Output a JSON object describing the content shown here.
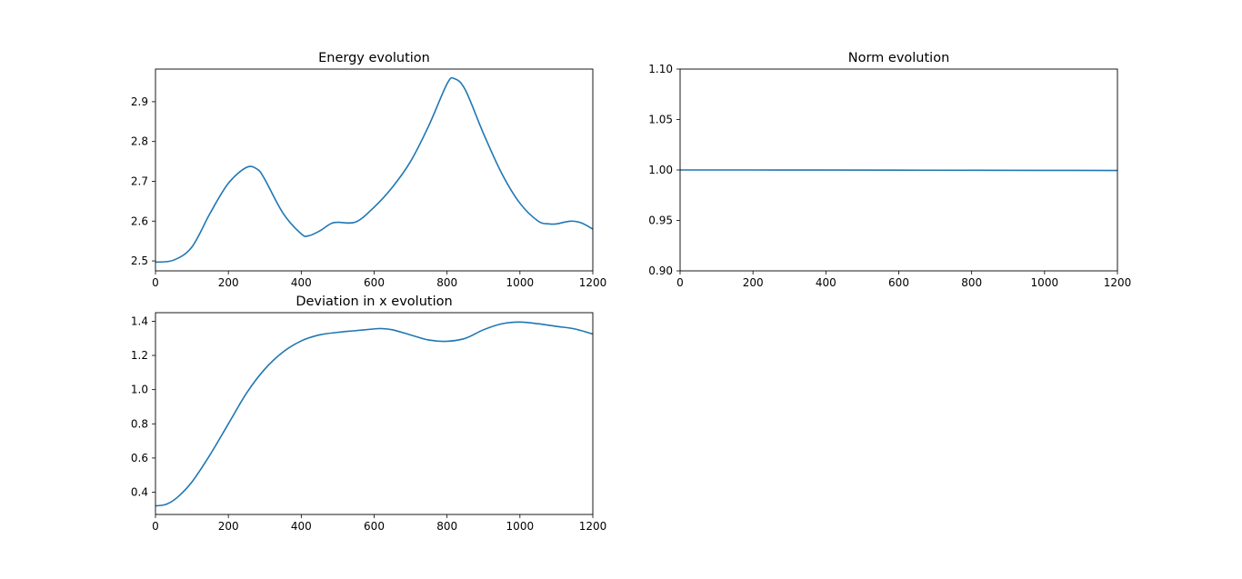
{
  "chart_data": [
    {
      "type": "line",
      "title": "Energy evolution",
      "xlabel": "",
      "ylabel": "",
      "xlim": [
        0,
        1200
      ],
      "ylim": [
        2.475,
        2.982
      ],
      "xticks": [
        "0",
        "200",
        "400",
        "600",
        "800",
        "1000",
        "1200"
      ],
      "yticks": [
        "2.5",
        "2.6",
        "2.7",
        "2.8",
        "2.9"
      ],
      "grid": false,
      "color": "#1f77b4",
      "x": [
        0,
        50,
        100,
        150,
        200,
        250,
        280,
        300,
        350,
        400,
        420,
        450,
        480,
        500,
        550,
        600,
        650,
        700,
        750,
        800,
        820,
        850,
        900,
        950,
        1000,
        1050,
        1080,
        1100,
        1140,
        1170,
        1200
      ],
      "y": [
        2.497,
        2.502,
        2.535,
        2.62,
        2.695,
        2.735,
        2.73,
        2.705,
        2.62,
        2.568,
        2.563,
        2.575,
        2.593,
        2.597,
        2.598,
        2.635,
        2.685,
        2.75,
        2.84,
        2.945,
        2.958,
        2.93,
        2.82,
        2.72,
        2.645,
        2.6,
        2.593,
        2.593,
        2.6,
        2.595,
        2.58
      ]
    },
    {
      "type": "line",
      "title": "Norm evolution",
      "xlabel": "",
      "ylabel": "",
      "xlim": [
        0,
        1200
      ],
      "ylim": [
        0.9,
        1.1
      ],
      "xticks": [
        "0",
        "200",
        "400",
        "600",
        "800",
        "1000",
        "1200"
      ],
      "yticks": [
        "0.90",
        "0.95",
        "1.00",
        "1.05",
        "1.10"
      ],
      "grid": false,
      "color": "#1f77b4",
      "x": [
        0,
        200,
        400,
        600,
        800,
        1000,
        1200
      ],
      "y": [
        1.0,
        1.0,
        0.9999,
        0.9998,
        0.9997,
        0.9996,
        0.9995
      ]
    },
    {
      "type": "line",
      "title": "Deviation in x evolution",
      "xlabel": "",
      "ylabel": "",
      "xlim": [
        0,
        1200
      ],
      "ylim": [
        0.27,
        1.45
      ],
      "xticks": [
        "0",
        "200",
        "400",
        "600",
        "800",
        "1000",
        "1200"
      ],
      "yticks": [
        "0.4",
        "0.6",
        "0.8",
        "1.0",
        "1.2",
        "1.4"
      ],
      "grid": false,
      "color": "#1f77b4",
      "x": [
        0,
        30,
        60,
        100,
        150,
        200,
        250,
        300,
        350,
        400,
        450,
        500,
        550,
        600,
        620,
        650,
        700,
        750,
        800,
        850,
        900,
        950,
        1000,
        1050,
        1100,
        1150,
        1200
      ],
      "y": [
        0.32,
        0.33,
        0.37,
        0.46,
        0.62,
        0.8,
        0.98,
        1.12,
        1.22,
        1.285,
        1.32,
        1.335,
        1.345,
        1.355,
        1.357,
        1.35,
        1.32,
        1.29,
        1.283,
        1.3,
        1.35,
        1.385,
        1.395,
        1.385,
        1.37,
        1.355,
        1.325
      ]
    }
  ]
}
